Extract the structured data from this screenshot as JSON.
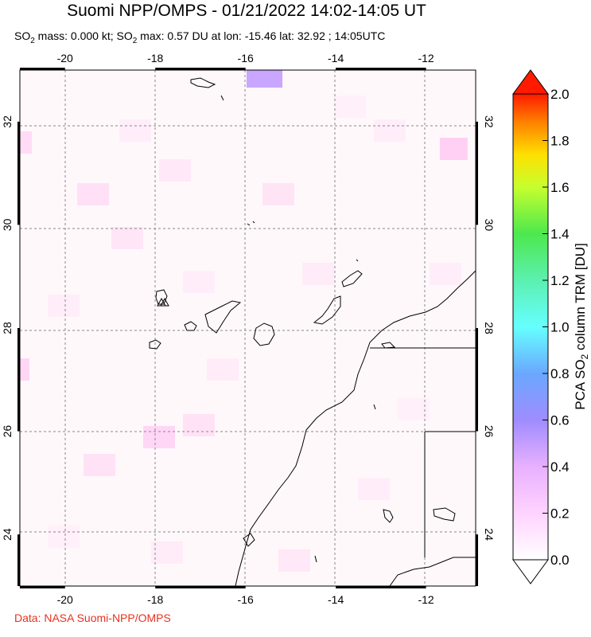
{
  "header": {
    "title": "Suomi NPP/OMPS - 01/21/2022 14:02-14:05 UT",
    "subtitle_pre": "SO",
    "subtitle_sub": "2",
    "subtitle_mid": " mass: 0.000 kt; SO",
    "subtitle_sub2": "2",
    "subtitle_post": " max: 0.57 DU at lon: -15.46 lat: 32.92 ; 14:05UTC"
  },
  "credit": "Data: NASA Suomi-NPP/OMPS",
  "map": {
    "lon_range": [
      -21,
      -10.9
    ],
    "lat_range": [
      23.0,
      33.0
    ],
    "lon_ticks": [
      "-20",
      "-18",
      "-16",
      "-14",
      "-12"
    ],
    "lat_ticks": [
      "24",
      "26",
      "28",
      "30",
      "32"
    ],
    "grid": true,
    "border_color": "#000000",
    "grid_color": "#888888",
    "coast_color": "#000000"
  },
  "colorbar": {
    "label_pre": "PCA SO",
    "label_sub": "2",
    "label_post": " column TRM [DU]",
    "ticks": [
      "0.0",
      "0.2",
      "0.4",
      "0.6",
      "0.8",
      "1.0",
      "1.2",
      "1.4",
      "1.6",
      "1.8",
      "2.0"
    ],
    "colors": [
      "#ffffff",
      "#ffd3ff",
      "#d9a0ff",
      "#8080ff",
      "#4fd0ff",
      "#66ffd9",
      "#4dff6d",
      "#b3ff33",
      "#ffff00",
      "#ffb000",
      "#ff5000",
      "#ff0000"
    ]
  }
}
